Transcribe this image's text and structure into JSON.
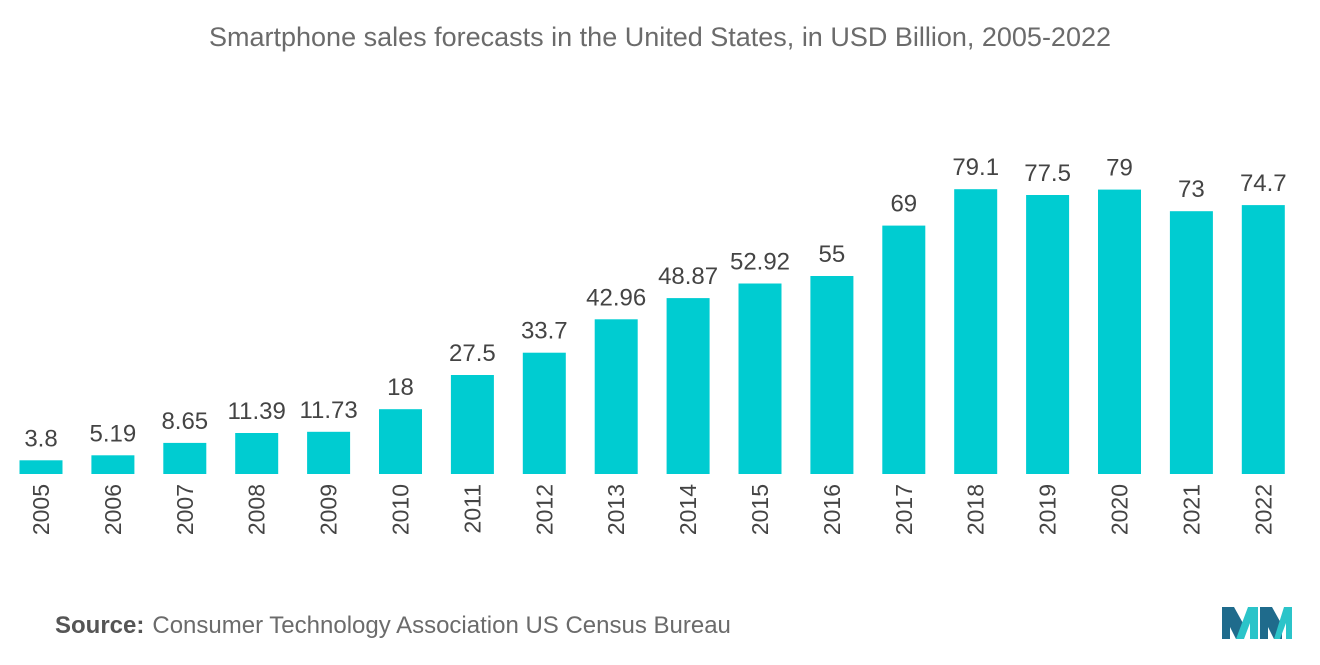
{
  "chart_data": {
    "type": "bar",
    "title": "Smartphone sales forecasts in the United States, in USD Billion, 2005-2022",
    "categories": [
      "2005",
      "2006",
      "2007",
      "2008",
      "2009",
      "2010",
      "2011",
      "2012",
      "2013",
      "2014",
      "2015",
      "2016",
      "2017",
      "2018",
      "2019",
      "2020",
      "2021",
      "2022"
    ],
    "values": [
      3.8,
      5.19,
      8.65,
      11.39,
      11.73,
      18,
      27.5,
      33.7,
      42.96,
      48.87,
      52.92,
      55,
      69,
      79.1,
      77.5,
      79,
      73,
      74.7
    ],
    "xlabel": "",
    "ylabel": "",
    "ylim": [
      0,
      90
    ],
    "grid": false,
    "bar_color": "#00ccd1"
  },
  "footer": {
    "source_label": "Source:",
    "source_text": "Consumer Technology Association US Census Bureau"
  },
  "logo": {
    "icon": "mordor-intelligence-logo-icon",
    "colors": [
      "#1f6b8c",
      "#2bc4c9"
    ]
  }
}
